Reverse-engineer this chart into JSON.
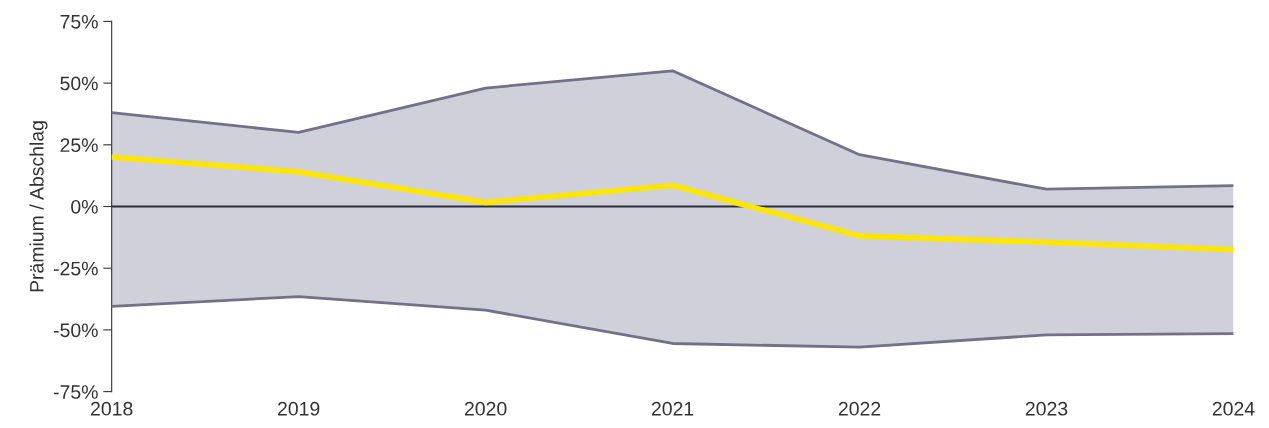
{
  "chart_data": {
    "type": "line",
    "ylabel": "Prämium / Abschlag",
    "x": [
      2018,
      2019,
      2020,
      2021,
      2022,
      2023,
      2024
    ],
    "series": [
      {
        "color": "#747087",
        "values": [
          38,
          30,
          48,
          55,
          21,
          7,
          8.5
        ]
      },
      {
        "color": "#747087",
        "values": [
          -40.5,
          -36.5,
          -42,
          -55.5,
          -57,
          -52,
          -51.5
        ]
      },
      {
        "color": "#ffe600",
        "values": [
          20,
          14,
          1.6,
          8.5,
          -12,
          -14.5,
          -17.5
        ],
        "lower": [
          -40.5,
          -36.5,
          -42,
          -55.5,
          -57,
          -52,
          -51.5
        ],
        "upper": [
          38,
          30,
          48,
          55,
          21,
          7,
          8.5
        ]
      }
    ],
    "xlim": [
      2018,
      2024
    ],
    "xticks": [
      2018,
      2019,
      2020,
      2021,
      2022,
      2023,
      2024
    ],
    "ylim": [
      -75,
      75
    ],
    "yticks": [
      {
        "value": -75,
        "label": "-75%"
      },
      {
        "value": -50,
        "label": "-50%"
      },
      {
        "value": -25,
        "label": "-25%"
      },
      {
        "value": 0,
        "label": "0%"
      },
      {
        "value": 25,
        "label": "25%"
      },
      {
        "value": 50,
        "label": "50%"
      },
      {
        "value": 75,
        "label": "75%"
      }
    ],
    "ref_lines": [
      {
        "axis": "y",
        "value": 0,
        "color": "#2e2e38"
      }
    ],
    "grid": false,
    "legend": false,
    "marker": "none",
    "line_style": "solid"
  }
}
